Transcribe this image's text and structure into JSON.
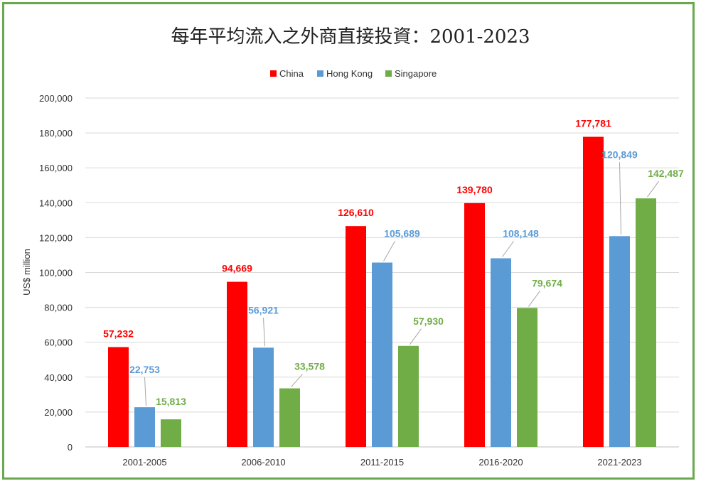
{
  "chart_data": {
    "type": "bar",
    "title": "每年平均流入之外商直接投資：2001-2023",
    "ylabel": "US$ million",
    "xlabel": "",
    "categories": [
      "2001-2005",
      "2006-2010",
      "2011-2015",
      "2016-2020",
      "2021-2023"
    ],
    "series": [
      {
        "name": "China",
        "color": "#ff0000",
        "values": [
          57232,
          94669,
          126610,
          139780,
          177781
        ],
        "labels": [
          "57,232",
          "94,669",
          "126,610",
          "139,780",
          "177,781"
        ]
      },
      {
        "name": "Hong Kong",
        "color": "#5b9bd5",
        "values": [
          22753,
          56921,
          105689,
          108148,
          120849
        ],
        "labels": [
          "22,753",
          "56,921",
          "105,689",
          "108,148",
          "120,849"
        ]
      },
      {
        "name": "Singapore",
        "color": "#70ad47",
        "values": [
          15813,
          33578,
          57930,
          79674,
          142487
        ],
        "labels": [
          "15,813",
          "33,578",
          "57,930",
          "79,674",
          "142,487"
        ]
      }
    ],
    "ylim": [
      0,
      200000
    ],
    "yticks": [
      0,
      20000,
      40000,
      60000,
      80000,
      100000,
      120000,
      140000,
      160000,
      180000,
      200000
    ],
    "ytick_labels": [
      "0",
      "20,000",
      "40,000",
      "60,000",
      "80,000",
      "100,000",
      "120,000",
      "140,000",
      "160,000",
      "180,000",
      "200,000"
    ],
    "legend_position": "top-center",
    "grid": true,
    "label_colors": {
      "China": "#ff0000",
      "Hong Kong": "#5b9bd5",
      "Singapore": "#70ad47"
    }
  }
}
